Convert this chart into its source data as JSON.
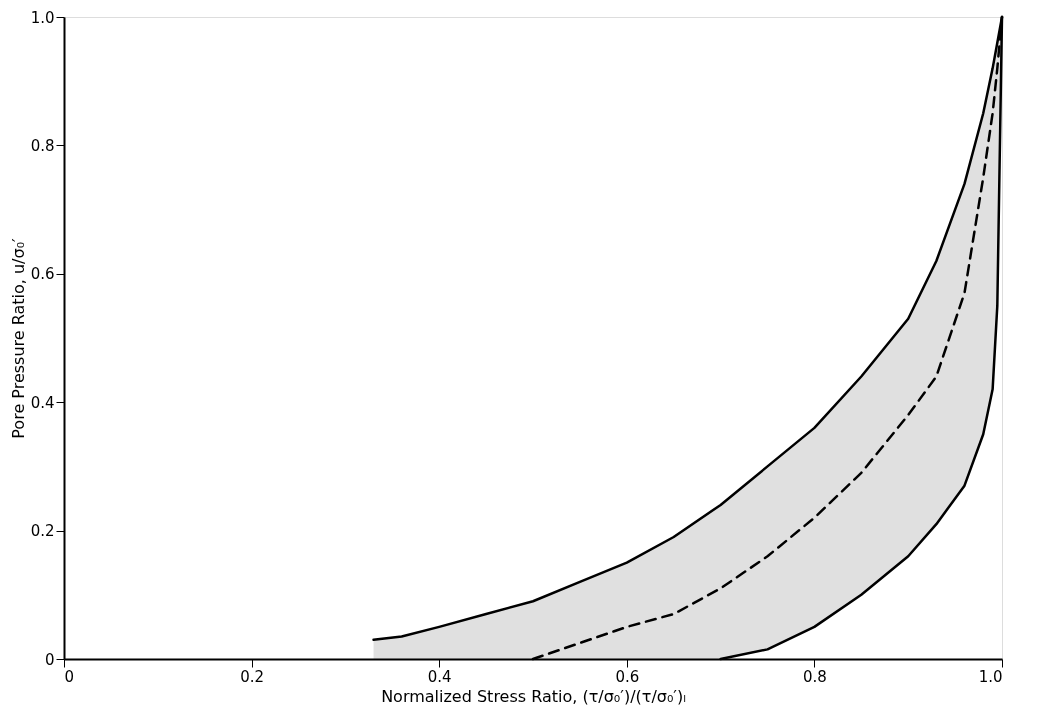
{
  "chart_data": {
    "type": "line",
    "xlabel": "Normalized Stress Ratio, (τ/σ₀′)/(τ/σ₀′)ₗ",
    "ylabel": "Pore Pressure Ratio, u/σ₀′",
    "xlim": [
      0,
      1
    ],
    "ylim": [
      0,
      1
    ],
    "xticks": [
      0,
      0.2,
      0.4,
      0.6,
      0.8,
      {
        "value": 1,
        "label": "1.0"
      }
    ],
    "yticks": [
      0,
      0.2,
      0.4,
      0.6,
      0.8,
      {
        "value": 1,
        "label": "1.0"
      }
    ],
    "grid": false,
    "legend": false,
    "series": [
      {
        "color": "#000000",
        "line_style": "solid",
        "x": [
          0.33,
          0.36,
          0.4,
          0.45,
          0.5,
          0.55,
          0.6,
          0.65,
          0.7,
          0.75,
          0.8,
          0.85,
          0.9,
          0.93,
          0.96,
          0.98,
          0.99,
          0.995,
          1.0
        ],
        "values": [
          0.03,
          0.035,
          0.05,
          0.07,
          0.09,
          0.12,
          0.15,
          0.19,
          0.24,
          0.3,
          0.36,
          0.44,
          0.53,
          0.62,
          0.74,
          0.85,
          0.92,
          0.96,
          1.0
        ]
      },
      {
        "color": "#000000",
        "line_style": "solid",
        "x": [
          0.7,
          0.75,
          0.8,
          0.85,
          0.9,
          0.93,
          0.96,
          0.98,
          0.99,
          0.995,
          1.0
        ],
        "values": [
          0,
          0.015,
          0.05,
          0.1,
          0.16,
          0.21,
          0.27,
          0.35,
          0.42,
          0.55,
          1.0
        ]
      },
      {
        "color": "#000000",
        "line_style": "dashed",
        "x": [
          0.33,
          0.36,
          0.4,
          0.45,
          0.5,
          0.55,
          0.6,
          0.65,
          0.7,
          0.75,
          0.8,
          0.85,
          0.9,
          0.93,
          0.96,
          0.98,
          0.99,
          0.995,
          1.0
        ],
        "values": [
          null,
          null,
          null,
          null,
          0,
          0.025,
          0.05,
          0.07,
          0.11,
          0.16,
          0.22,
          0.29,
          0.38,
          0.44,
          0.57,
          0.75,
          0.85,
          0.92,
          1.0
        ],
        "lower": [
          0,
          0,
          0,
          0,
          0,
          0,
          0,
          0,
          0,
          0.015,
          0.05,
          0.1,
          0.16,
          0.21,
          0.27,
          0.35,
          0.42,
          0.55,
          1.0
        ],
        "upper": [
          0.03,
          0.035,
          0.05,
          0.07,
          0.09,
          0.12,
          0.15,
          0.19,
          0.24,
          0.3,
          0.36,
          0.44,
          0.53,
          0.62,
          0.74,
          0.85,
          0.92,
          0.96,
          1.0
        ]
      }
    ]
  }
}
